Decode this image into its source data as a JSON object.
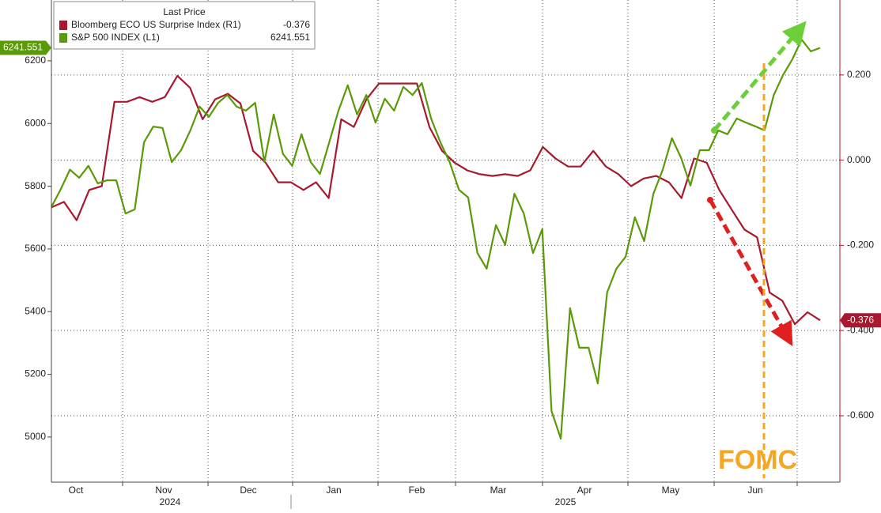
{
  "chart_data": {
    "type": "line",
    "legend_title": "Last Price",
    "months": [
      "Oct",
      "Nov",
      "Dec",
      "Jan",
      "Feb",
      "Mar",
      "Apr",
      "May",
      "Jun"
    ],
    "years": [
      "2024",
      "2025"
    ],
    "annotation": "FOMC",
    "ylim": [
      4856,
      6394
    ],
    "yticks": [
      5000,
      5200,
      5400,
      5600,
      5800,
      6000,
      6200
    ],
    "y2lim": [
      -0.756,
      0.376
    ],
    "y2ticks": [
      {
        "value": -0.6,
        "label": "-0.600"
      },
      {
        "value": -0.4,
        "label": "-0.400"
      },
      {
        "value": -0.2,
        "label": "-0.200"
      },
      {
        "value": 0,
        "label": "0.000"
      },
      {
        "value": 0.2,
        "label": "0.200"
      }
    ],
    "grid": true,
    "series": [
      {
        "name": "Bloomberg ECO US Surprise Index  (R1)",
        "color": "#a6192e",
        "axis": "y2",
        "values": [
          -0.111,
          -0.098,
          -0.141,
          -0.07,
          -0.061,
          0.137,
          0.137,
          0.148,
          0.137,
          0.148,
          0.198,
          0.17,
          0.096,
          0.143,
          0.156,
          0.133,
          0.022,
          -0.006,
          -0.052,
          -0.052,
          -0.07,
          -0.052,
          -0.089,
          0.096,
          0.078,
          0.143,
          0.18,
          0.18,
          0.18,
          0.18,
          0.078,
          0.022,
          -0.006,
          -0.024,
          -0.033,
          -0.037,
          -0.033,
          -0.037,
          -0.024,
          0.031,
          0.004,
          -0.015,
          -0.015,
          0.022,
          -0.015,
          -0.033,
          -0.061,
          -0.043,
          -0.037,
          -0.052,
          -0.089,
          0.004,
          -0.006,
          -0.07,
          -0.117,
          -0.163,
          -0.181,
          -0.311,
          -0.33,
          -0.385,
          -0.357,
          -0.376
        ]
      },
      {
        "name": "S&P 500 INDEX  (L1)",
        "color": "#5a9a08",
        "axis": "y",
        "values": [
          5734,
          5790,
          5853,
          5827,
          5865,
          5809,
          5819,
          5819,
          5713,
          5726,
          5940,
          5990,
          5986,
          5877,
          5915,
          5978,
          6054,
          6021,
          6066,
          6091,
          6054,
          6041,
          6066,
          5877,
          6029,
          5903,
          5865,
          5966,
          5877,
          5839,
          5940,
          6041,
          6122,
          6029,
          6091,
          6003,
          6079,
          6041,
          6117,
          6091,
          6129,
          6016,
          5940,
          5877,
          5789,
          5764,
          5587,
          5537,
          5676,
          5613,
          5776,
          5713,
          5587,
          5663,
          5083,
          4995,
          5411,
          5285,
          5285,
          5171,
          5461,
          5537,
          5575,
          5701,
          5625,
          5776,
          5852,
          5953,
          5890,
          5802,
          5915,
          5915,
          5978,
          5966,
          6016,
          6003,
          5991,
          5978,
          6091,
          6155,
          6205,
          6268,
          6230,
          6241.551
        ]
      }
    ]
  }
}
